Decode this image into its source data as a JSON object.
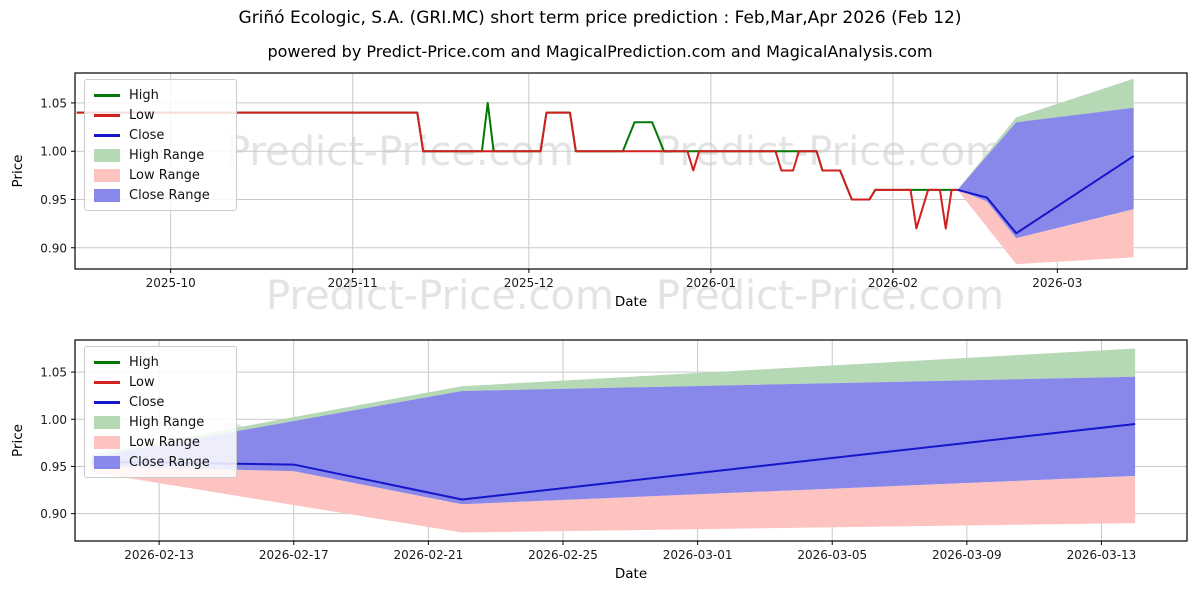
{
  "title": "Griñó Ecologic, S.A. (GRI.MC) short term price prediction : Feb,Mar,Apr 2026 (Feb 12)",
  "subtitle": "powered by Predict-Price.com and MagicalPrediction.com and MagicalAnalysis.com",
  "watermark": "Predict-Price.com",
  "colors": {
    "high_line": "#047804",
    "low_line": "#d12020",
    "close_line": "#1515c9",
    "high_range": "#b5d8b5",
    "low_range": "#fcc3c0",
    "close_range": "#8888ea",
    "grid": "#c9c9c9",
    "frame": "#000000"
  },
  "legend": {
    "items": [
      {
        "label": "High",
        "type": "line",
        "color": "#047804"
      },
      {
        "label": "Low",
        "type": "line",
        "color": "#d12020"
      },
      {
        "label": "Close",
        "type": "line",
        "color": "#1515c9"
      },
      {
        "label": "High Range",
        "type": "patch",
        "color": "#b5d8b5"
      },
      {
        "label": "Low Range",
        "type": "patch",
        "color": "#fcc3c0"
      },
      {
        "label": "Close Range",
        "type": "patch",
        "color": "#8888ea"
      }
    ]
  },
  "chart_data": [
    {
      "type": "line",
      "name": "history-and-prediction",
      "xlabel": "Date",
      "ylabel": "Price",
      "x_axis": {
        "min": "2025-09-14T17:00",
        "max": "2026-03-23T02:00",
        "ticks": [
          {
            "label": "2025-10",
            "date": "2025-10-01"
          },
          {
            "label": "2025-11",
            "date": "2025-11-01"
          },
          {
            "label": "2025-12",
            "date": "2025-12-01"
          },
          {
            "label": "2026-01",
            "date": "2026-01-01"
          },
          {
            "label": "2026-02",
            "date": "2026-02-01"
          },
          {
            "label": "2026-03",
            "date": "2026-03-01"
          }
        ]
      },
      "y_axis": {
        "min": 0.878,
        "max": 1.081,
        "ticks": [
          1.05,
          1.0,
          0.95,
          0.9
        ]
      },
      "fills": [
        {
          "name": "High Range",
          "color": "#b5d8b5",
          "upper": [
            [
              "2026-02-12",
              0.96
            ],
            [
              "2026-02-22",
              1.035
            ],
            [
              "2026-03-14",
              1.075
            ]
          ],
          "lower": [
            [
              "2026-02-12",
              0.96
            ],
            [
              "2026-02-22",
              1.03
            ],
            [
              "2026-03-14",
              1.045
            ]
          ]
        },
        {
          "name": "Low Range",
          "color": "#fcc3c0",
          "upper": [
            [
              "2026-02-12",
              0.96
            ],
            [
              "2026-02-17",
              0.948
            ],
            [
              "2026-02-22",
              0.91
            ],
            [
              "2026-03-14",
              0.94
            ]
          ],
          "lower": [
            [
              "2026-02-12",
              0.96
            ],
            [
              "2026-02-22",
              0.883
            ],
            [
              "2026-03-14",
              0.89
            ]
          ]
        },
        {
          "name": "Close Range",
          "color": "#8888ea",
          "upper": [
            [
              "2026-02-12",
              0.96
            ],
            [
              "2026-02-22",
              1.03
            ],
            [
              "2026-03-14",
              1.045
            ]
          ],
          "lower": [
            [
              "2026-02-12",
              0.96
            ],
            [
              "2026-02-17",
              0.948
            ],
            [
              "2026-02-22",
              0.91
            ],
            [
              "2026-03-14",
              0.94
            ]
          ]
        }
      ],
      "series": [
        {
          "name": "High",
          "color": "#047804",
          "points": [
            [
              "2025-09-15",
              1.04
            ],
            [
              "2025-11-12",
              1.04
            ],
            [
              "2025-11-13",
              1.0
            ],
            [
              "2025-11-23",
              1.0
            ],
            [
              "2025-11-24",
              1.05
            ],
            [
              "2025-11-25",
              1.0
            ],
            [
              "2025-12-03",
              1.0
            ],
            [
              "2025-12-04",
              1.04
            ],
            [
              "2025-12-08",
              1.04
            ],
            [
              "2025-12-09",
              1.0
            ],
            [
              "2025-12-17",
              1.0
            ],
            [
              "2025-12-19",
              1.03
            ],
            [
              "2025-12-22",
              1.03
            ],
            [
              "2025-12-24",
              1.0
            ],
            [
              "2026-01-19",
              1.0
            ],
            [
              "2026-01-20",
              0.98
            ],
            [
              "2026-01-23",
              0.98
            ],
            [
              "2026-01-25",
              0.95
            ],
            [
              "2026-01-28",
              0.95
            ],
            [
              "2026-01-29",
              0.96
            ],
            [
              "2026-02-12",
              0.96
            ]
          ]
        },
        {
          "name": "Low",
          "color": "#d12020",
          "points": [
            [
              "2025-09-15",
              1.04
            ],
            [
              "2025-11-12",
              1.04
            ],
            [
              "2025-11-13",
              1.0
            ],
            [
              "2025-12-03",
              1.0
            ],
            [
              "2025-12-04",
              1.04
            ],
            [
              "2025-12-08",
              1.04
            ],
            [
              "2025-12-09",
              1.0
            ],
            [
              "2025-12-28",
              1.0
            ],
            [
              "2025-12-29",
              0.98
            ],
            [
              "2025-12-30",
              1.0
            ],
            [
              "2026-01-12",
              1.0
            ],
            [
              "2026-01-13",
              0.98
            ],
            [
              "2026-01-15",
              0.98
            ],
            [
              "2026-01-16",
              1.0
            ],
            [
              "2026-01-19",
              1.0
            ],
            [
              "2026-01-20",
              0.98
            ],
            [
              "2026-01-23",
              0.98
            ],
            [
              "2026-01-25",
              0.95
            ],
            [
              "2026-01-28",
              0.95
            ],
            [
              "2026-01-29",
              0.96
            ],
            [
              "2026-02-04",
              0.96
            ],
            [
              "2026-02-05",
              0.92
            ],
            [
              "2026-02-07",
              0.96
            ],
            [
              "2026-02-09",
              0.96
            ],
            [
              "2026-02-10",
              0.92
            ],
            [
              "2026-02-11",
              0.96
            ],
            [
              "2026-02-12",
              0.96
            ]
          ]
        },
        {
          "name": "Close",
          "color": "#1515c9",
          "points": [
            [
              "2026-02-12",
              0.96
            ],
            [
              "2026-02-17",
              0.952
            ],
            [
              "2026-02-22",
              0.915
            ],
            [
              "2026-03-14",
              0.995
            ]
          ]
        }
      ]
    },
    {
      "type": "line",
      "name": "prediction-zoom",
      "xlabel": "Date",
      "ylabel": "Price",
      "x_axis": {
        "min": "2026-02-10T12:00",
        "max": "2026-03-15T13:00",
        "ticks": [
          {
            "label": "2026-02-13",
            "date": "2026-02-13"
          },
          {
            "label": "2026-02-17",
            "date": "2026-02-17"
          },
          {
            "label": "2026-02-21",
            "date": "2026-02-21"
          },
          {
            "label": "2026-02-25",
            "date": "2026-02-25"
          },
          {
            "label": "2026-03-01",
            "date": "2026-03-01"
          },
          {
            "label": "2026-03-05",
            "date": "2026-03-05"
          },
          {
            "label": "2026-03-09",
            "date": "2026-03-09"
          },
          {
            "label": "2026-03-13",
            "date": "2026-03-13"
          }
        ]
      },
      "y_axis": {
        "min": 0.871,
        "max": 1.084,
        "ticks": [
          1.05,
          1.0,
          0.95,
          0.9
        ]
      },
      "fills": [
        {
          "name": "High Range",
          "color": "#b5d8b5",
          "upper": [
            [
              "2026-02-11",
              0.963
            ],
            [
              "2026-02-22",
              1.035
            ],
            [
              "2026-03-14",
              1.075
            ]
          ],
          "lower": [
            [
              "2026-02-11",
              0.96
            ],
            [
              "2026-02-22",
              1.03
            ],
            [
              "2026-03-14",
              1.045
            ]
          ]
        },
        {
          "name": "Low Range",
          "color": "#fcc3c0",
          "upper": [
            [
              "2026-02-11",
              0.95
            ],
            [
              "2026-02-17",
              0.945
            ],
            [
              "2026-02-22",
              0.91
            ],
            [
              "2026-03-14",
              0.94
            ]
          ],
          "lower": [
            [
              "2026-02-11",
              0.944
            ],
            [
              "2026-02-22",
              0.88
            ],
            [
              "2026-03-14",
              0.89
            ]
          ]
        },
        {
          "name": "Close Range",
          "color": "#8888ea",
          "upper": [
            [
              "2026-02-11",
              0.96
            ],
            [
              "2026-02-22",
              1.03
            ],
            [
              "2026-03-14",
              1.045
            ]
          ],
          "lower": [
            [
              "2026-02-11",
              0.95
            ],
            [
              "2026-02-17",
              0.945
            ],
            [
              "2026-02-22",
              0.91
            ],
            [
              "2026-03-14",
              0.94
            ]
          ]
        }
      ],
      "series": [
        {
          "name": "Close",
          "color": "#1515c9",
          "points": [
            [
              "2026-02-11",
              0.955
            ],
            [
              "2026-02-17",
              0.952
            ],
            [
              "2026-02-22",
              0.915
            ],
            [
              "2026-03-14",
              0.995
            ]
          ]
        }
      ]
    }
  ]
}
